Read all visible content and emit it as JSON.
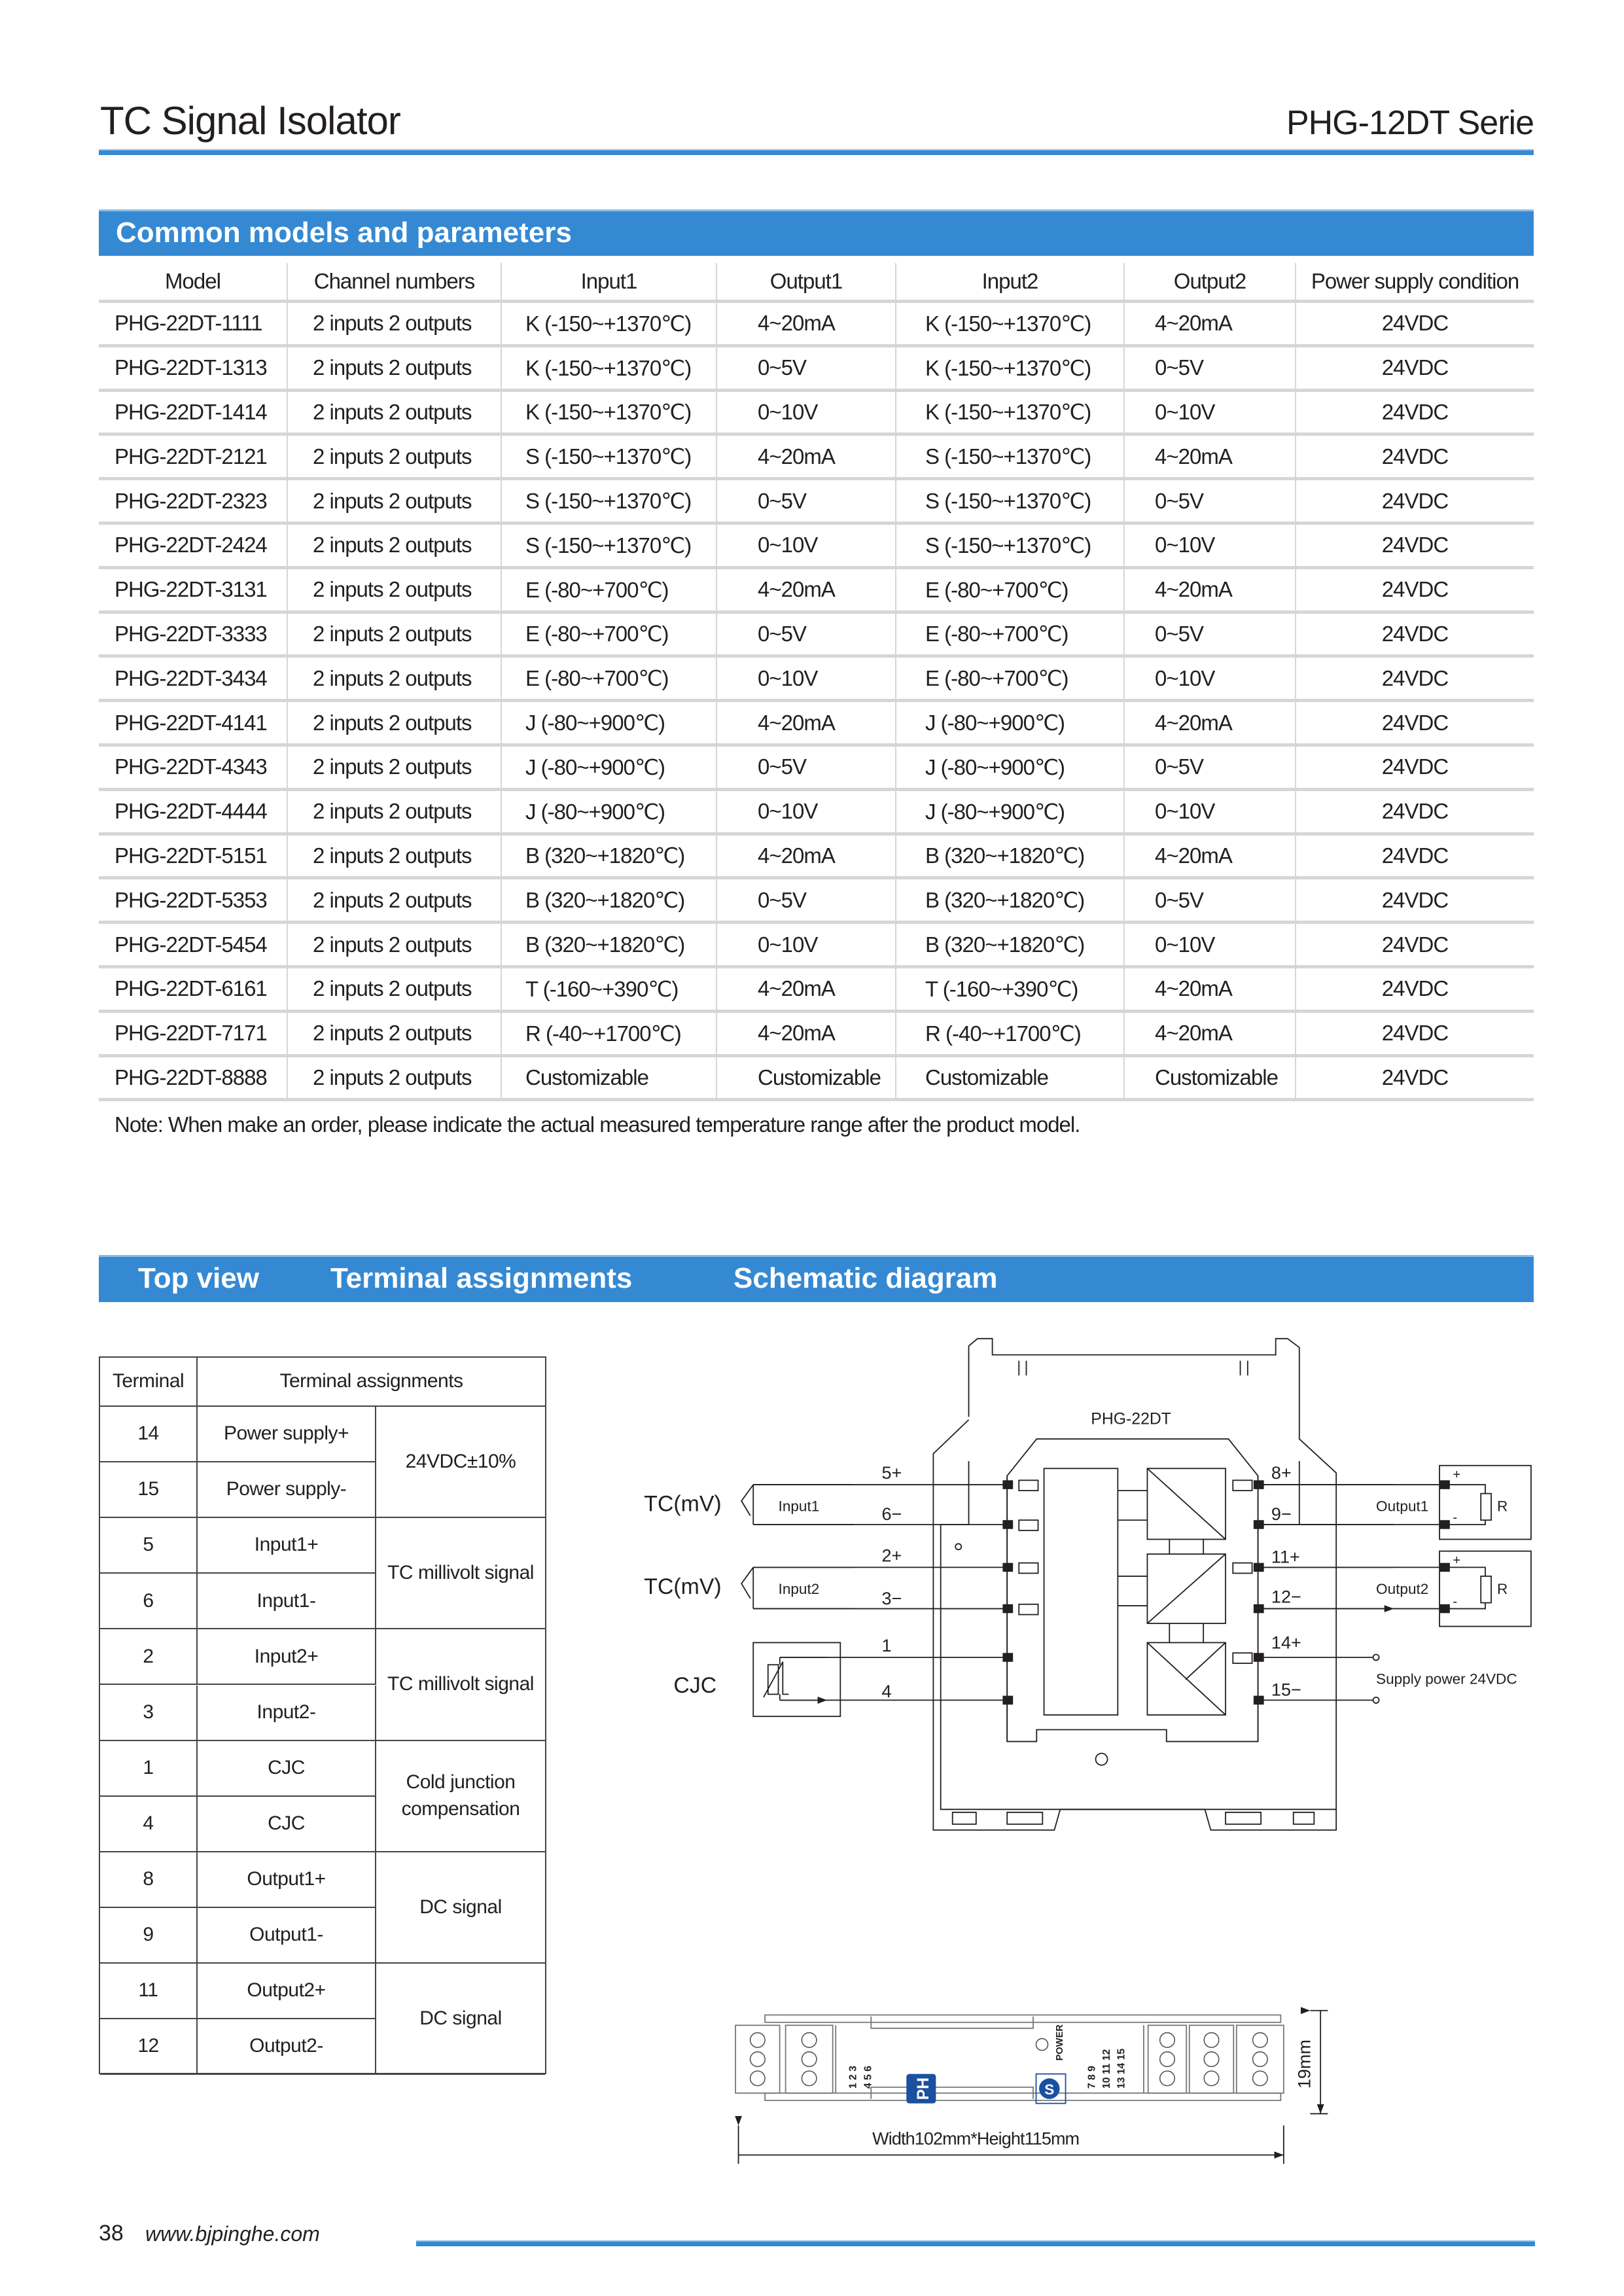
{
  "header": {
    "title": "TC Signal Isolator",
    "series": "PHG-12DT Serie"
  },
  "colors": {
    "accent": "#3589d3",
    "divider": "#d6d6d6",
    "logo_blue": "#1b4fa0"
  },
  "models": {
    "section_title": "Common models and parameters",
    "columns": [
      "Model",
      "Channel numbers",
      "Input1",
      "Output1",
      "Input2",
      "Output2",
      "Power supply condition"
    ],
    "rows": [
      [
        "PHG-22DT-1111",
        "2 inputs 2 outputs",
        "K (-150~+1370℃)",
        "4~20mA",
        "K (-150~+1370℃)",
        "4~20mA",
        "24VDC"
      ],
      [
        "PHG-22DT-1313",
        "2 inputs 2 outputs",
        "K (-150~+1370℃)",
        "0~5V",
        "K (-150~+1370℃)",
        "0~5V",
        "24VDC"
      ],
      [
        "PHG-22DT-1414",
        "2 inputs 2 outputs",
        "K (-150~+1370℃)",
        "0~10V",
        "K (-150~+1370℃)",
        "0~10V",
        "24VDC"
      ],
      [
        "PHG-22DT-2121",
        "2 inputs 2 outputs",
        "S (-150~+1370℃)",
        "4~20mA",
        "S (-150~+1370℃)",
        "4~20mA",
        "24VDC"
      ],
      [
        "PHG-22DT-2323",
        "2 inputs 2 outputs",
        "S (-150~+1370℃)",
        "0~5V",
        "S (-150~+1370℃)",
        "0~5V",
        "24VDC"
      ],
      [
        "PHG-22DT-2424",
        "2 inputs 2 outputs",
        "S (-150~+1370℃)",
        "0~10V",
        "S (-150~+1370℃)",
        "0~10V",
        "24VDC"
      ],
      [
        "PHG-22DT-3131",
        "2 inputs 2 outputs",
        "E (-80~+700℃)",
        "4~20mA",
        "E (-80~+700℃)",
        "4~20mA",
        "24VDC"
      ],
      [
        "PHG-22DT-3333",
        "2 inputs 2 outputs",
        "E (-80~+700℃)",
        "0~5V",
        "E (-80~+700℃)",
        "0~5V",
        "24VDC"
      ],
      [
        "PHG-22DT-3434",
        "2 inputs 2 outputs",
        "E (-80~+700℃)",
        "0~10V",
        "E (-80~+700℃)",
        "0~10V",
        "24VDC"
      ],
      [
        "PHG-22DT-4141",
        "2 inputs 2 outputs",
        "J (-80~+900℃)",
        "4~20mA",
        "J (-80~+900℃)",
        "4~20mA",
        "24VDC"
      ],
      [
        "PHG-22DT-4343",
        "2 inputs 2 outputs",
        "J (-80~+900℃)",
        "0~5V",
        "J (-80~+900℃)",
        "0~5V",
        "24VDC"
      ],
      [
        "PHG-22DT-4444",
        "2 inputs 2 outputs",
        "J (-80~+900℃)",
        "0~10V",
        "J (-80~+900℃)",
        "0~10V",
        "24VDC"
      ],
      [
        "PHG-22DT-5151",
        "2 inputs 2 outputs",
        "B (320~+1820℃)",
        "4~20mA",
        "B (320~+1820℃)",
        "4~20mA",
        "24VDC"
      ],
      [
        "PHG-22DT-5353",
        "2 inputs 2 outputs",
        "B (320~+1820℃)",
        "0~5V",
        "B (320~+1820℃)",
        "0~5V",
        "24VDC"
      ],
      [
        "PHG-22DT-5454",
        "2 inputs 2 outputs",
        "B (320~+1820℃)",
        "0~10V",
        "B (320~+1820℃)",
        "0~10V",
        "24VDC"
      ],
      [
        "PHG-22DT-6161",
        "2 inputs 2 outputs",
        "T (-160~+390℃)",
        "4~20mA",
        "T (-160~+390℃)",
        "4~20mA",
        "24VDC"
      ],
      [
        "PHG-22DT-7171",
        "2 inputs 2 outputs",
        "R (-40~+1700℃)",
        "4~20mA",
        "R (-40~+1700℃)",
        "4~20mA",
        "24VDC"
      ],
      [
        "PHG-22DT-8888",
        "2 inputs 2 outputs",
        "Customizable",
        "Customizable",
        "Customizable",
        "Customizable",
        "24VDC"
      ]
    ],
    "note": "Note: When make an order, please indicate the actual measured temperature range after the product model."
  },
  "section2": {
    "top_view": "Top view",
    "terminal_assignments": "Terminal assignments",
    "schematic": "Schematic diagram"
  },
  "terminals": {
    "headers": [
      "Terminal",
      "Terminal assignments"
    ],
    "groups": [
      {
        "desc": "24VDC±10%",
        "items": [
          {
            "terminal": "14",
            "name": "Power supply+"
          },
          {
            "terminal": "15",
            "name": "Power supply-"
          }
        ]
      },
      {
        "desc": "TC millivolt signal",
        "items": [
          {
            "terminal": "5",
            "name": "Input1+"
          },
          {
            "terminal": "6",
            "name": "Input1-"
          }
        ]
      },
      {
        "desc": "TC millivolt signal",
        "items": [
          {
            "terminal": "2",
            "name": "Input2+"
          },
          {
            "terminal": "3",
            "name": "Input2-"
          }
        ]
      },
      {
        "desc": "Cold junction compensation",
        "items": [
          {
            "terminal": "1",
            "name": "CJC"
          },
          {
            "terminal": "4",
            "name": "CJC"
          }
        ]
      },
      {
        "desc": "DC signal",
        "items": [
          {
            "terminal": "8",
            "name": "Output1+"
          },
          {
            "terminal": "9",
            "name": "Output1-"
          }
        ]
      },
      {
        "desc": "DC signal",
        "items": [
          {
            "terminal": "11",
            "name": "Output2+"
          },
          {
            "terminal": "12",
            "name": "Output2-"
          }
        ]
      }
    ]
  },
  "schematic": {
    "model": "PHG-22DT",
    "tc1": "TC(mV)",
    "tc2": "TC(mV)",
    "cjc": "CJC",
    "input1": "Input1",
    "input2": "Input2",
    "output1": "Output1",
    "output2": "Output2",
    "resistor": "R",
    "plus": "+",
    "minus": "-",
    "left_pins": [
      "5+",
      "6−",
      "2+",
      "3−",
      "1",
      "4"
    ],
    "right_pins": [
      "8+",
      "9−",
      "11+",
      "12−",
      "14+",
      "15−"
    ],
    "supply": "Supply power 24VDC"
  },
  "top_view": {
    "left_numbers": [
      "1 2 3",
      "4 5 6"
    ],
    "right_numbers": [
      "7 8 9",
      "10 11 12",
      "13 14 15"
    ],
    "power_label": "POWER",
    "logo_text": "PH",
    "cert_logo_text": "S",
    "height_dim": "19mm",
    "size_caption": "Width102mm*Height115mm"
  },
  "footer": {
    "page": "38",
    "url": "www.bjpinghe.com"
  }
}
